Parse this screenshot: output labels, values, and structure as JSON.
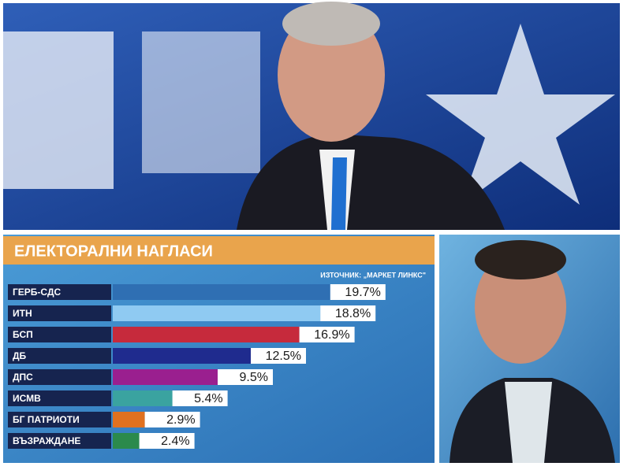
{
  "chart_data": {
    "type": "bar",
    "title": "ЕЛЕКТОРАЛНИ НАГЛАСИ",
    "source": "ИЗТОЧНИК: „МАРКЕТ ЛИНКС\"",
    "categories": [
      "ГЕРБ-СДС",
      "ИТН",
      "БСП",
      "ДБ",
      "ДПС",
      "ИСМВ",
      "БГ ПАТРИОТИ",
      "ВЪЗРАЖДАНЕ"
    ],
    "values": [
      19.7,
      18.8,
      16.9,
      12.5,
      9.5,
      5.4,
      2.9,
      2.4
    ],
    "value_labels": [
      "19.7%",
      "18.8%",
      "16.9%",
      "12.5%",
      "9.5%",
      "5.4%",
      "2.9%",
      "2.4%"
    ],
    "colors": [
      "#2f6fb3",
      "#8fcaf2",
      "#c62a3c",
      "#1f2b8e",
      "#9a1f8f",
      "#3aa3a0",
      "#e0711f",
      "#2b8a4c"
    ]
  }
}
